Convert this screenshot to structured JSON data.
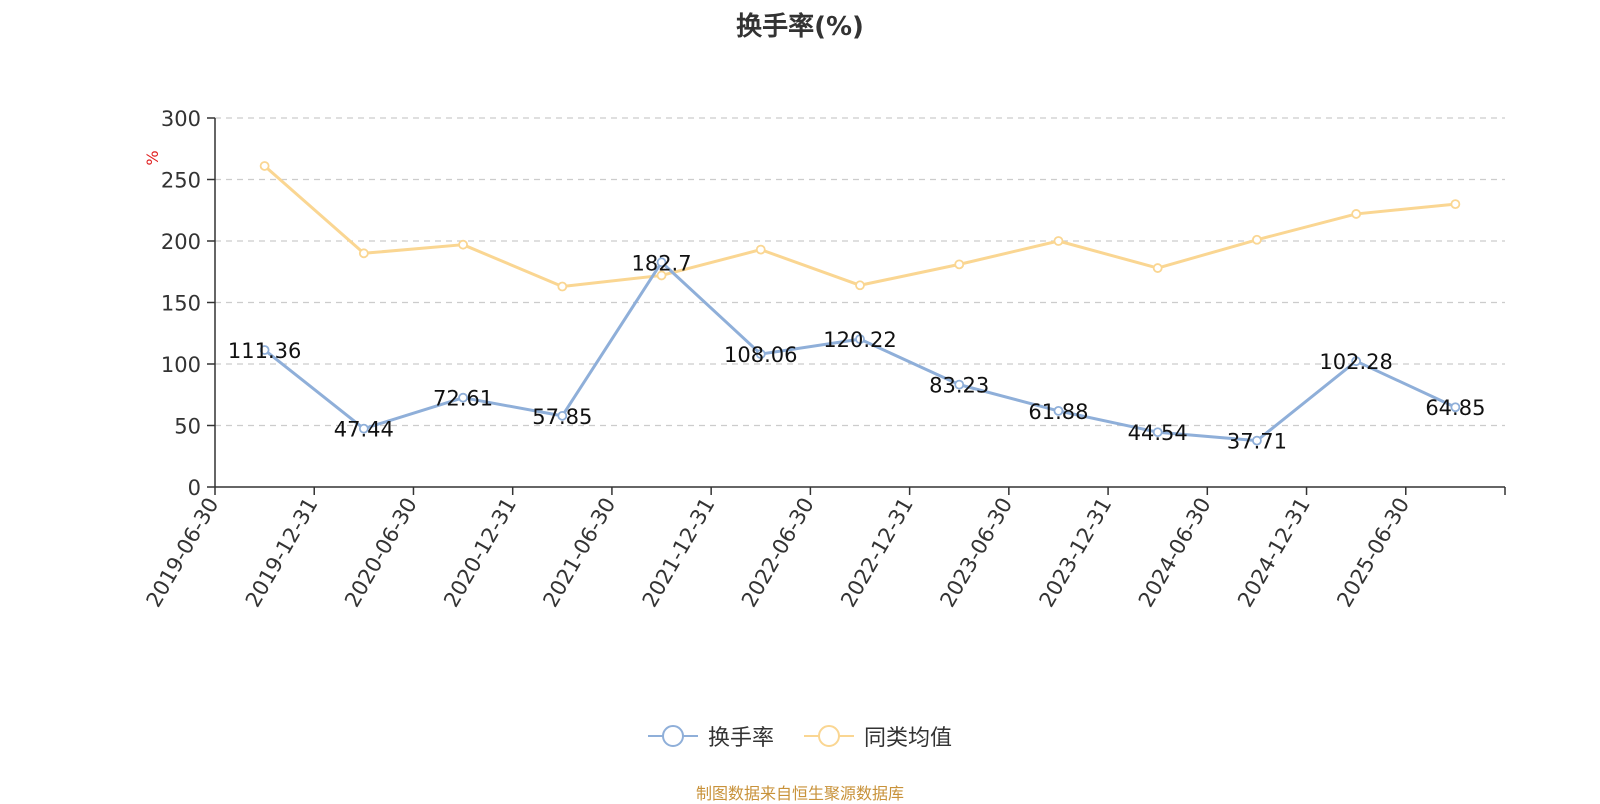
{
  "title": "换手率(%)",
  "source_text": "制图数据来自恒生聚源数据库",
  "chart_data": {
    "type": "line",
    "title": "换手率(%)",
    "ylabel": "%",
    "xlabel": "",
    "ylim": [
      0,
      300
    ],
    "yticks": [
      0,
      50,
      100,
      150,
      200,
      250,
      300
    ],
    "grid": true,
    "legend_position": "bottom",
    "categories": [
      "2019-06-30",
      "2019-12-31",
      "2020-06-30",
      "2020-12-31",
      "2021-06-30",
      "2021-12-31",
      "2022-06-30",
      "2022-12-31",
      "2023-06-30",
      "2023-12-31",
      "2024-06-30",
      "2024-12-31",
      "2025-06-30"
    ],
    "series": [
      {
        "name": "换手率",
        "color": "#8fafd9",
        "show_labels": true,
        "values": [
          111.36,
          47.44,
          72.61,
          57.85,
          182.7,
          108.06,
          120.22,
          83.23,
          61.88,
          44.54,
          37.71,
          102.28,
          64.85
        ]
      },
      {
        "name": "同类均值",
        "color": "#fad692",
        "show_labels": false,
        "values": [
          261,
          190,
          197,
          163,
          172,
          193,
          164,
          181,
          200,
          178,
          201,
          222,
          230
        ]
      }
    ]
  },
  "legend": [
    {
      "label": "换手率",
      "color": "#8fafd9"
    },
    {
      "label": "同类均值",
      "color": "#fad692"
    }
  ]
}
